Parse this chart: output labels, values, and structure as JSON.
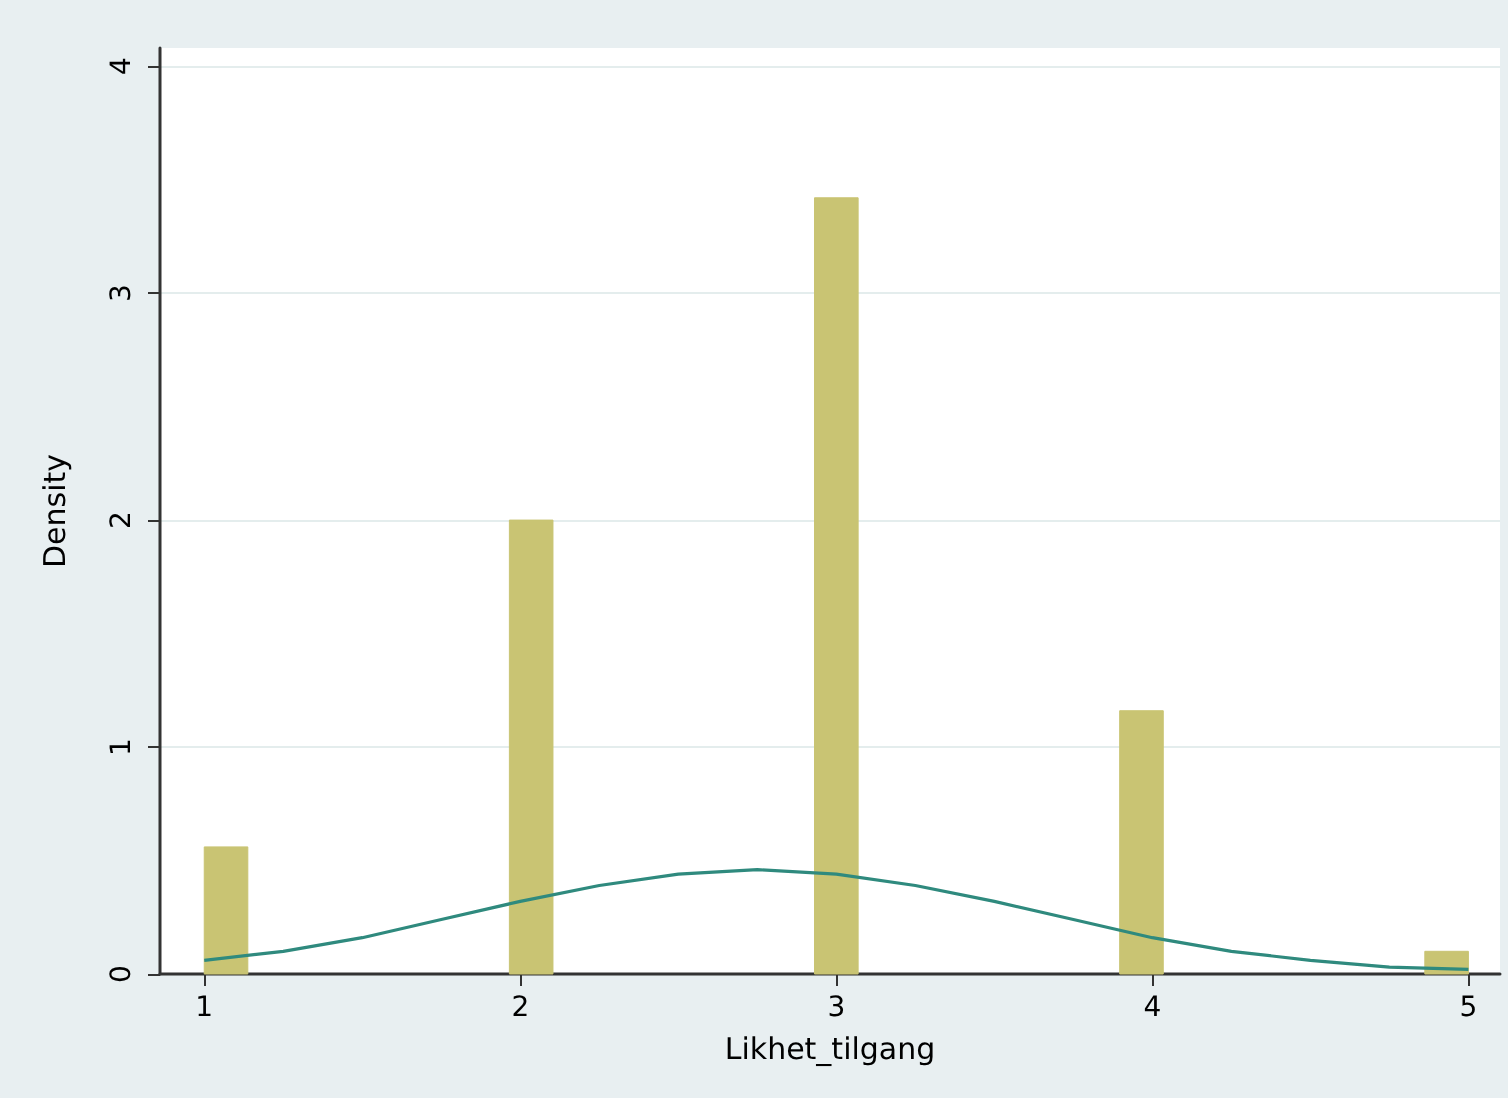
{
  "chart_data": {
    "type": "histogram",
    "xlabel": "Likhet_tilgang",
    "ylabel": "Density",
    "bins": [
      1,
      1.1379,
      1.2759,
      1.4138,
      1.5517,
      1.6897,
      1.8276,
      1.9655,
      2.1034,
      2.2414,
      2.3793,
      2.5172,
      2.6552,
      2.7931,
      2.931,
      3.069,
      3.2069,
      3.3448,
      3.4828,
      3.6207,
      3.7586,
      3.8966,
      4.0345,
      4.1724,
      4.3103,
      4.4483,
      4.5862,
      4.7241,
      4.8621,
      5
    ],
    "values": [
      0.56,
      0,
      0,
      0,
      0,
      0,
      0,
      2.0,
      0,
      0,
      0,
      0,
      0,
      0,
      3.42,
      0,
      0,
      0,
      0,
      0,
      0,
      1.16,
      0,
      0,
      0,
      0,
      0,
      0,
      0.1
    ],
    "color": "#c9c473",
    "series": [
      {
        "type": "line",
        "color": "#2f8a7e",
        "x": [
          1,
          1.25,
          1.5,
          1.75,
          2,
          2.25,
          2.5,
          2.75,
          3,
          3.25,
          3.5,
          3.75,
          4,
          4.25,
          4.5,
          4.75,
          5
        ],
        "values": [
          0.06,
          0.1,
          0.16,
          0.24,
          0.32,
          0.39,
          0.44,
          0.46,
          0.44,
          0.39,
          0.32,
          0.24,
          0.16,
          0.1,
          0.06,
          0.03,
          0.02
        ]
      }
    ],
    "xlim": [
      0.86,
      5.1
    ],
    "ylim": [
      0,
      4.08
    ],
    "xticks": [
      1,
      2,
      3,
      4,
      5
    ],
    "yticks": [
      0,
      1,
      2,
      3,
      4
    ],
    "grid": "y"
  }
}
